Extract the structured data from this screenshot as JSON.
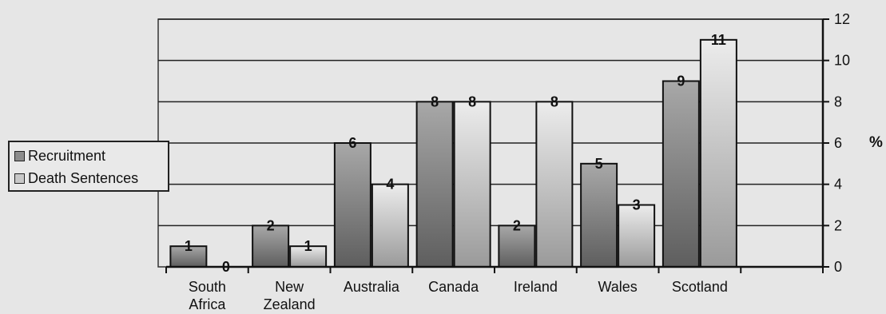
{
  "chart_data": {
    "type": "bar",
    "categories": [
      [
        "South",
        "Africa"
      ],
      [
        "New",
        "Zealand"
      ],
      [
        "Australia"
      ],
      [
        "Canada"
      ],
      [
        "Ireland"
      ],
      [
        "Wales"
      ],
      [
        "Scotland"
      ]
    ],
    "series": [
      {
        "name": "Recruitment",
        "values": [
          1,
          2,
          6,
          8,
          2,
          5,
          9
        ]
      },
      {
        "name": "Death Sentences",
        "values": [
          0,
          1,
          4,
          8,
          8,
          3,
          11
        ]
      }
    ],
    "y_axis": {
      "ticks": [
        0,
        2,
        4,
        6,
        8,
        10,
        12
      ],
      "ylim": [
        0,
        12
      ],
      "side": "right",
      "unit_label": "%"
    },
    "grid": true,
    "legend_position": "left",
    "data_labels": true
  },
  "colors": {
    "recruitment_bar": "#8c8c8c",
    "death_sentences_bar": "#c8c8c8",
    "gridline": "#222222",
    "plot_background": "#e6e6e6"
  }
}
